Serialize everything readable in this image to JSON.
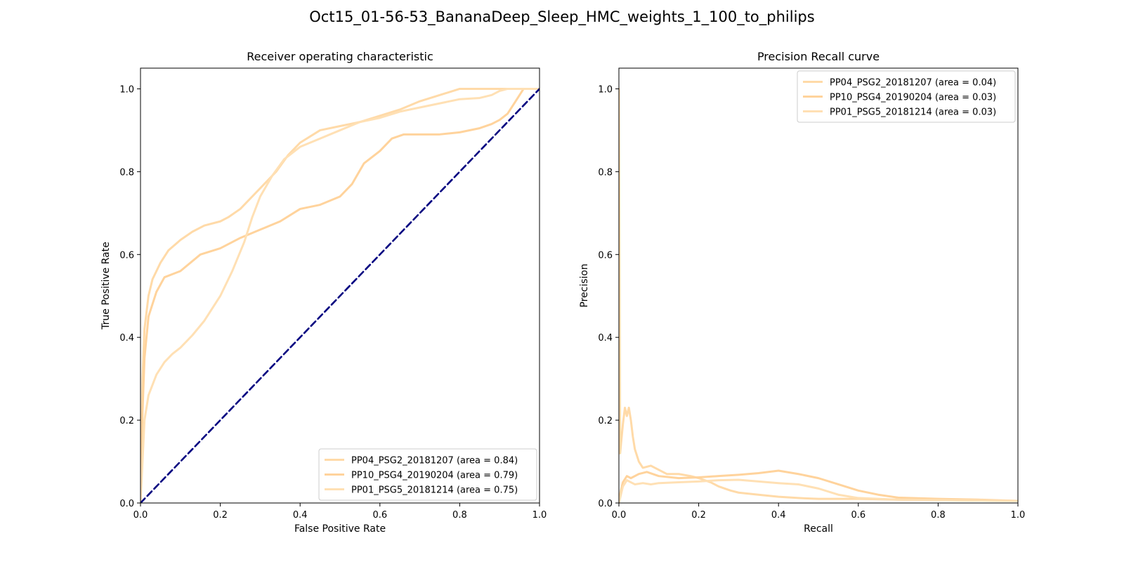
{
  "figure_title": "Oct15_01-56-53_BananaDeep_Sleep_HMC_weights_1_100_to_philips",
  "chart_data": [
    {
      "type": "line",
      "title": "Receiver operating characteristic",
      "xlabel": "False Positive Rate",
      "ylabel": "True Positive Rate",
      "xlim": [
        0,
        1
      ],
      "ylim": [
        0,
        1.05
      ],
      "xticks": [
        "0.0",
        "0.2",
        "0.4",
        "0.6",
        "0.8",
        "1.0"
      ],
      "yticks": [
        "0.0",
        "0.2",
        "0.4",
        "0.6",
        "0.8",
        "1.0"
      ],
      "grid": false,
      "legend_position": "lower-right",
      "series": [
        {
          "name": "PP04_PSG2_20181207 (area = 0.84)",
          "color": "#ffdaa8",
          "x": [
            0,
            0.005,
            0.01,
            0.02,
            0.03,
            0.05,
            0.07,
            0.1,
            0.13,
            0.16,
            0.2,
            0.22,
            0.25,
            0.28,
            0.31,
            0.34,
            0.37,
            0.4,
            0.45,
            0.5,
            0.55,
            0.6,
            0.65,
            0.7,
            0.75,
            0.8,
            0.85,
            0.9,
            0.93,
            0.96,
            1.0
          ],
          "y": [
            0,
            0.3,
            0.42,
            0.5,
            0.54,
            0.58,
            0.61,
            0.635,
            0.655,
            0.67,
            0.68,
            0.69,
            0.71,
            0.74,
            0.77,
            0.8,
            0.84,
            0.87,
            0.9,
            0.91,
            0.92,
            0.935,
            0.95,
            0.97,
            0.985,
            1.0,
            1.0,
            1.0,
            1.0,
            1.0,
            1.0
          ]
        },
        {
          "name": "PP10_PSG4_20190204 (area = 0.79)",
          "color": "#ffd39c",
          "x": [
            0,
            0.005,
            0.01,
            0.02,
            0.04,
            0.06,
            0.1,
            0.15,
            0.2,
            0.25,
            0.3,
            0.35,
            0.4,
            0.45,
            0.5,
            0.53,
            0.56,
            0.6,
            0.63,
            0.66,
            0.7,
            0.75,
            0.8,
            0.85,
            0.88,
            0.9,
            0.92,
            0.94,
            0.96,
            0.98,
            1.0
          ],
          "y": [
            0,
            0.22,
            0.35,
            0.45,
            0.51,
            0.545,
            0.56,
            0.6,
            0.615,
            0.64,
            0.66,
            0.68,
            0.71,
            0.72,
            0.74,
            0.77,
            0.82,
            0.85,
            0.88,
            0.89,
            0.89,
            0.89,
            0.895,
            0.905,
            0.915,
            0.925,
            0.94,
            0.97,
            1.0,
            1.0,
            1.0
          ]
        },
        {
          "name": "PP01_PSG5_20181214 (area = 0.75)",
          "color": "#ffe0b4",
          "x": [
            0,
            0.01,
            0.02,
            0.04,
            0.06,
            0.08,
            0.1,
            0.13,
            0.16,
            0.2,
            0.23,
            0.26,
            0.28,
            0.3,
            0.33,
            0.36,
            0.4,
            0.45,
            0.5,
            0.55,
            0.6,
            0.65,
            0.7,
            0.75,
            0.8,
            0.85,
            0.88,
            0.9,
            0.92,
            0.96,
            1.0
          ],
          "y": [
            0,
            0.2,
            0.26,
            0.31,
            0.34,
            0.36,
            0.375,
            0.405,
            0.44,
            0.5,
            0.56,
            0.63,
            0.69,
            0.74,
            0.79,
            0.83,
            0.86,
            0.88,
            0.9,
            0.92,
            0.93,
            0.945,
            0.955,
            0.965,
            0.975,
            0.978,
            0.985,
            0.995,
            1.0,
            1.0,
            1.0
          ]
        },
        {
          "name": "",
          "color": "#000080",
          "dashed": true,
          "x": [
            0,
            1
          ],
          "y": [
            0,
            1
          ]
        }
      ]
    },
    {
      "type": "line",
      "title": "Precision Recall curve",
      "xlabel": "Recall",
      "ylabel": "Precision",
      "xlim": [
        0,
        1
      ],
      "ylim": [
        0,
        1.05
      ],
      "xticks": [
        "0.0",
        "0.2",
        "0.4",
        "0.6",
        "0.8",
        "1.0"
      ],
      "yticks": [
        "0.0",
        "0.2",
        "0.4",
        "0.6",
        "0.8",
        "1.0"
      ],
      "grid": false,
      "legend_position": "upper-right",
      "series": [
        {
          "name": "PP04_PSG2_20181207 (area = 0.04)",
          "color": "#ffdaa8",
          "x": [
            0,
            0.003,
            0.01,
            0.015,
            0.02,
            0.025,
            0.03,
            0.035,
            0.04,
            0.05,
            0.06,
            0.08,
            0.1,
            0.12,
            0.15,
            0.18,
            0.2,
            0.23,
            0.25,
            0.28,
            0.3,
            0.35,
            0.4,
            0.45,
            0.5,
            0.55,
            0.6,
            0.7,
            0.8,
            0.9,
            1.0
          ],
          "y": [
            1.0,
            0.12,
            0.19,
            0.23,
            0.21,
            0.23,
            0.2,
            0.16,
            0.13,
            0.1,
            0.085,
            0.09,
            0.08,
            0.07,
            0.07,
            0.065,
            0.06,
            0.05,
            0.04,
            0.03,
            0.025,
            0.02,
            0.015,
            0.012,
            0.01,
            0.01,
            0.01,
            0.008,
            0.007,
            0.006,
            0.005
          ]
        },
        {
          "name": "PP10_PSG4_20190204 (area = 0.03)",
          "color": "#ffd39c",
          "x": [
            0,
            0.005,
            0.01,
            0.02,
            0.03,
            0.05,
            0.07,
            0.1,
            0.15,
            0.2,
            0.25,
            0.3,
            0.35,
            0.4,
            0.45,
            0.5,
            0.55,
            0.6,
            0.65,
            0.7,
            0.8,
            0.9,
            1.0
          ],
          "y": [
            0.0,
            0.03,
            0.05,
            0.065,
            0.06,
            0.07,
            0.075,
            0.065,
            0.06,
            0.062,
            0.065,
            0.068,
            0.072,
            0.078,
            0.07,
            0.06,
            0.045,
            0.03,
            0.02,
            0.013,
            0.01,
            0.008,
            0.005
          ]
        },
        {
          "name": "PP01_PSG5_20181214 (area = 0.03)",
          "color": "#ffe0b4",
          "x": [
            0,
            0.005,
            0.01,
            0.02,
            0.03,
            0.04,
            0.06,
            0.08,
            0.1,
            0.15,
            0.2,
            0.25,
            0.3,
            0.35,
            0.4,
            0.45,
            0.5,
            0.55,
            0.6,
            0.65,
            0.7,
            0.8,
            0.9,
            1.0
          ],
          "y": [
            0.0,
            0.02,
            0.04,
            0.055,
            0.05,
            0.045,
            0.048,
            0.045,
            0.048,
            0.05,
            0.052,
            0.055,
            0.056,
            0.052,
            0.048,
            0.045,
            0.035,
            0.02,
            0.012,
            0.01,
            0.008,
            0.007,
            0.006,
            0.005
          ]
        }
      ]
    }
  ]
}
